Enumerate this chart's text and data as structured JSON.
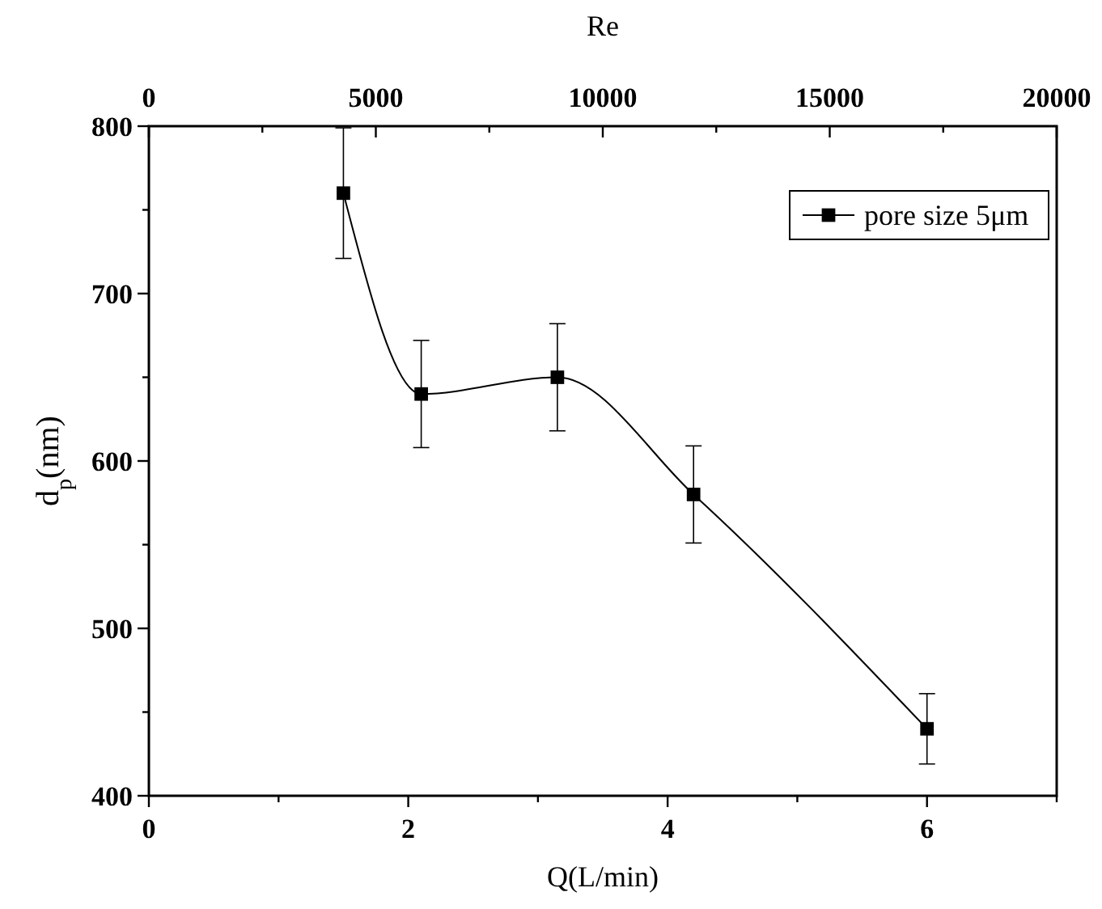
{
  "chart_data": {
    "type": "line",
    "xlabel": "Q(L/min)",
    "ylabel": "d$_{p}$(nm)",
    "x2label": "Re",
    "x": [
      1.5,
      2.1,
      3.15,
      4.2,
      6
    ],
    "series": [
      {
        "name": "pore size 5μm",
        "color": "#000000",
        "values": [
          760,
          640,
          650,
          580,
          440
        ],
        "errors": [
          39,
          32,
          32,
          29,
          21
        ]
      }
    ],
    "xlim": [
      0,
      7
    ],
    "xticks": [
      0,
      {
        "value": 1,
        "label": null
      },
      2,
      {
        "value": 3,
        "label": null
      },
      4,
      {
        "value": 5,
        "label": null
      },
      6,
      {
        "value": 7,
        "label": null
      }
    ],
    "x2lim": [
      0,
      20000
    ],
    "x2ticks": [
      0,
      {
        "value": 2500,
        "label": null
      },
      5000,
      {
        "value": 7500,
        "label": null
      },
      10000,
      {
        "value": 12500,
        "label": null
      },
      15000,
      {
        "value": 17500,
        "label": null
      },
      20000
    ],
    "ylim": [
      400,
      800
    ],
    "yticks": [
      400,
      {
        "value": 450,
        "label": null
      },
      500,
      {
        "value": 550,
        "label": null
      },
      600,
      {
        "value": 650,
        "label": null
      },
      700,
      {
        "value": 750,
        "label": null
      },
      800
    ],
    "marker": "square",
    "line_style": "solid",
    "grid": false,
    "legend": "top right"
  }
}
